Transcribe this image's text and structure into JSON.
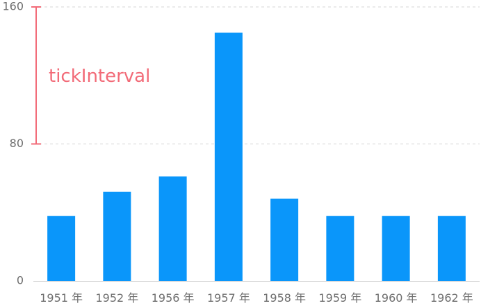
{
  "chart_data": {
    "type": "bar",
    "categories": [
      "1951 年",
      "1952 年",
      "1956 年",
      "1957 年",
      "1958 年",
      "1959 年",
      "1960 年",
      "1962 年"
    ],
    "values": [
      38,
      52,
      61,
      145,
      48,
      38,
      38,
      38
    ],
    "ylim": [
      0,
      160
    ],
    "yticks": [
      0,
      80,
      160
    ],
    "grid": true,
    "grid_style": "dashed",
    "annotation": {
      "text": "tickInterval",
      "from": 80,
      "to": 160
    },
    "colors": {
      "bar": "#0a96fa",
      "annotation": "#f26b78",
      "grid": "#dddddd",
      "axis": "#d0d0d0",
      "tick_text": "#6e6e6e"
    }
  }
}
